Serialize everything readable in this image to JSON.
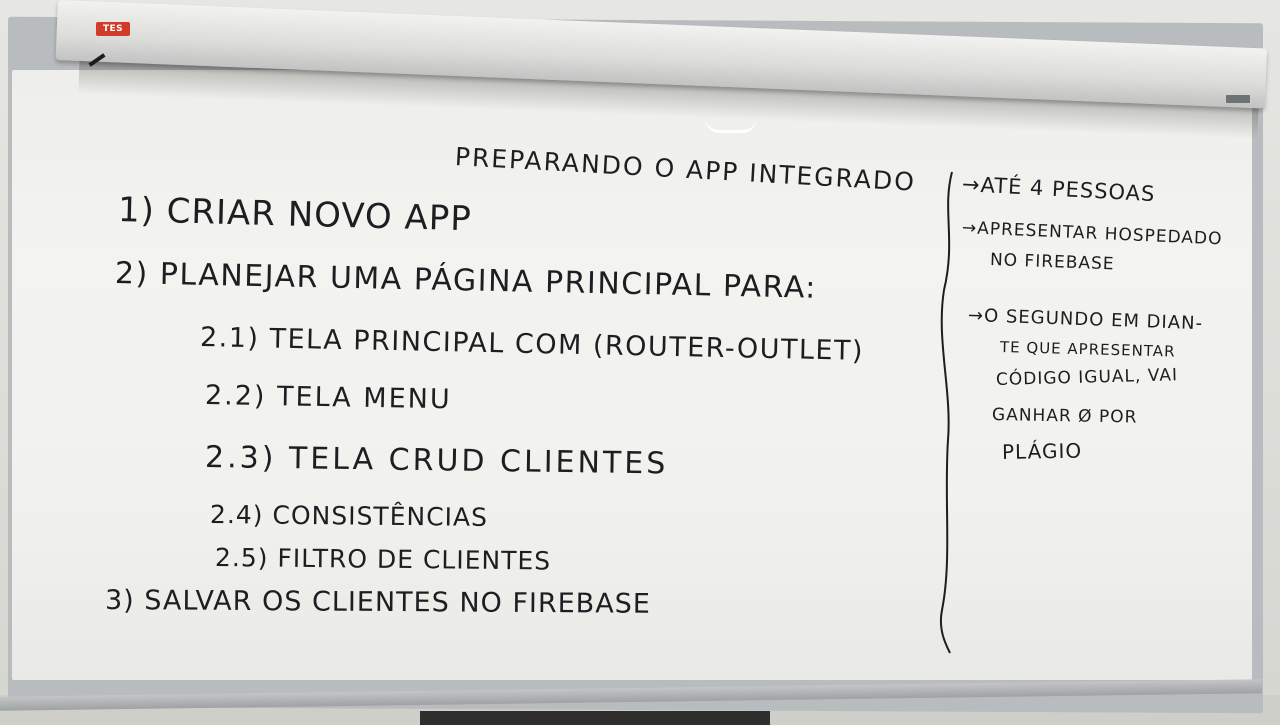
{
  "brand": "TES",
  "board": {
    "title": "PREPARANDO O APP INTEGRADO",
    "items": [
      "1) CRIAR NOVO APP",
      "2) PLANEJAR UMA PÁGINA PRINCIPAL PARA:",
      "2.1) TELA PRINCIPAL COM (ROUTER-OUTLET)",
      "2.2) TELA MENU",
      "2.3) TELA CRUD CLIENTES",
      "2.4) CONSISTÊNCIAS",
      "2.5) FILTRO DE CLIENTES",
      "3) SALVAR OS CLIENTES NO FIREBASE"
    ],
    "notes": [
      "→ATÉ 4 PESSOAS",
      "→APRESENTAR HOSPEDADO",
      "NO FIREBASE",
      "→O SEGUNDO EM DIAN-",
      "TE QUE APRESENTAR",
      "CÓDIGO IGUAL, VAI",
      "GANHAR Ø POR",
      "PLÁGIO"
    ]
  },
  "colors": {
    "ink": "#1d1e22",
    "board": "#f1f1ed",
    "frame": "#b9bcbe",
    "logo": "#d23a2a"
  }
}
